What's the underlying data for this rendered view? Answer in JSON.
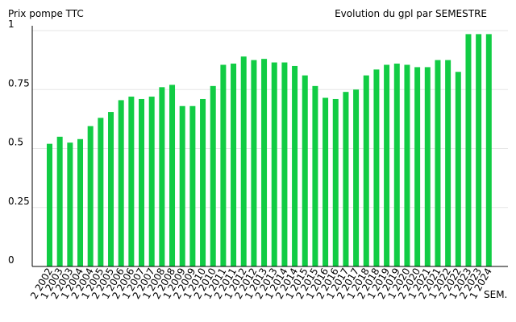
{
  "chart_data": {
    "type": "bar",
    "title": "Evolution du gpl par SEMESTRE",
    "ylabel": "Prix pompe TTC",
    "xlabel": "SEM.",
    "ylim": [
      0,
      1
    ],
    "yticks": [
      "0",
      "0.25",
      "0.5",
      "0.75",
      "1"
    ],
    "ytick_values": [
      0,
      0.25,
      0.5,
      0.75,
      1
    ],
    "grid": true,
    "bar_color": "#11cc44",
    "categories": [
      "2 2002",
      "1 2003",
      "2 2003",
      "1 2004",
      "2 2004",
      "1 2005",
      "2 2005",
      "1 2006",
      "2 2006",
      "1 2007",
      "2 2007",
      "1 2008",
      "2 2008",
      "1 2009",
      "2 2009",
      "1 2010",
      "2 2010",
      "1 2011",
      "2 2011",
      "1 2012",
      "2 2012",
      "1 2013",
      "2 2013",
      "1 2014",
      "2 2014",
      "1 2015",
      "2 2015",
      "1 2016",
      "2 2016",
      "1 2017",
      "2 2017",
      "1 2018",
      "2 2018",
      "1 2019",
      "2 2019",
      "1 2020",
      "2 2020",
      "1 2021",
      "2 2021",
      "1 2022",
      "2 2022",
      "1 2023",
      "2 2023",
      "1 2024"
    ],
    "values": [
      0.52,
      0.55,
      0.525,
      0.54,
      0.595,
      0.63,
      0.655,
      0.705,
      0.72,
      0.71,
      0.72,
      0.76,
      0.77,
      0.68,
      0.68,
      0.71,
      0.765,
      0.855,
      0.86,
      0.89,
      0.875,
      0.88,
      0.865,
      0.865,
      0.85,
      0.81,
      0.765,
      0.715,
      0.71,
      0.74,
      0.75,
      0.81,
      0.835,
      0.855,
      0.86,
      0.855,
      0.845,
      0.845,
      0.875,
      0.875,
      0.825,
      0.985,
      0.985,
      0.985
    ]
  }
}
